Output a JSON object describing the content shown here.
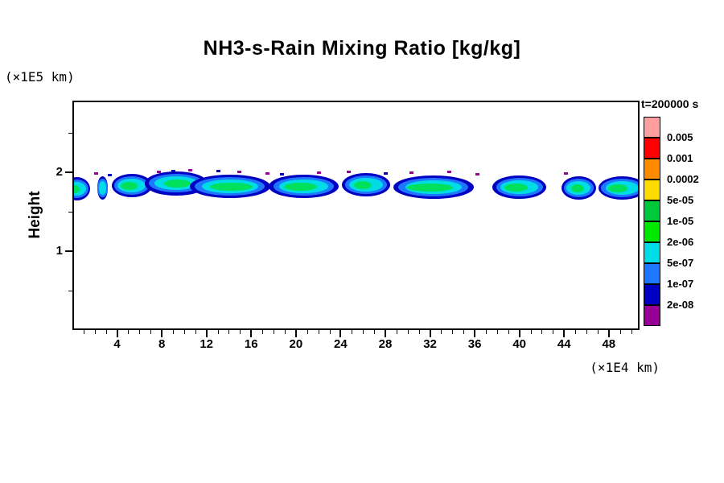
{
  "chart_data": {
    "type": "heatmap",
    "title": "NH3-s-Rain Mixing Ratio [kg/kg]",
    "xlabel": "(×1E4 km)",
    "ylabel": "Height",
    "y_unit": "(×1E5 km)",
    "time_label": "t=200000 s",
    "xlim": [
      0,
      50.75
    ],
    "ylim": [
      0,
      2.91
    ],
    "x_major_ticks": [
      4,
      8,
      12,
      16,
      20,
      24,
      28,
      32,
      36,
      40,
      44,
      48
    ],
    "x_minor_step": 1,
    "y_major_ticks": [
      1,
      2
    ],
    "y_minor_ticks": [
      0.5,
      1.5,
      2.5
    ],
    "levels_desc": [
      "0.005",
      "0.001",
      "0.0002",
      "5e-05",
      "1e-05",
      "2e-06",
      "5e-07",
      "1e-07",
      "2e-08"
    ],
    "palette_desc": [
      "#ff9e9e",
      "#ff0000",
      "#ff8c00",
      "#ffdc00",
      "#00c83c",
      "#00e800",
      "#00dce6",
      "#1e78ff",
      "#0000c3",
      "#960096"
    ],
    "legend_position": "right",
    "grid": false,
    "band": {
      "cy_default": 1.82,
      "layer_colors": {
        "outer": "#0000c3",
        "mid": "#1e78ff",
        "inner": "#00dce6",
        "core": "#00e05a"
      },
      "blobs": [
        {
          "cx": 0.4,
          "w": 2.4,
          "cy": 1.79,
          "core_w": 0.9,
          "core_cx": 0.2
        },
        {
          "cx": 2.7,
          "w": 1.0,
          "cy": 1.8,
          "core_w": 0,
          "core_cx": 0
        },
        {
          "cx": 5.3,
          "w": 3.6,
          "cy": 1.83,
          "core_w": 1.5,
          "core_cx": 5.1
        },
        {
          "cx": 9.3,
          "w": 5.6,
          "cy": 1.86,
          "core_w": 2.4,
          "core_cx": 9.4
        },
        {
          "cx": 14.1,
          "w": 7.2,
          "cy": 1.82,
          "core_w": 3.8,
          "core_cx": 14.2
        },
        {
          "cx": 20.7,
          "w": 6.2,
          "cy": 1.82,
          "core_w": 2.9,
          "core_cx": 20.4
        },
        {
          "cx": 26.3,
          "w": 4.3,
          "cy": 1.84,
          "core_w": 1.6,
          "core_cx": 26.0
        },
        {
          "cx": 32.3,
          "w": 7.2,
          "cy": 1.81,
          "core_w": 4.1,
          "core_cx": 32.0
        },
        {
          "cx": 40.0,
          "w": 4.8,
          "cy": 1.81,
          "core_w": 2.1,
          "core_cx": 39.7
        },
        {
          "cx": 45.3,
          "w": 3.1,
          "cy": 1.8,
          "core_w": 1.1,
          "core_cx": 45.2
        },
        {
          "cx": 49.2,
          "w": 4.3,
          "cy": 1.8,
          "core_w": 1.7,
          "core_cx": 48.8
        }
      ],
      "specks": [
        {
          "x": 2.1,
          "y": 1.99,
          "c": "p"
        },
        {
          "x": 3.3,
          "y": 1.97,
          "c": "n"
        },
        {
          "x": 7.7,
          "y": 2.01,
          "c": "p"
        },
        {
          "x": 9.0,
          "y": 2.02,
          "c": "n"
        },
        {
          "x": 10.5,
          "y": 2.03,
          "c": "p"
        },
        {
          "x": 13.0,
          "y": 2.02,
          "c": "n"
        },
        {
          "x": 14.9,
          "y": 2.01,
          "c": "p"
        },
        {
          "x": 17.4,
          "y": 1.99,
          "c": "p"
        },
        {
          "x": 18.7,
          "y": 1.98,
          "c": "n"
        },
        {
          "x": 22.0,
          "y": 2.0,
          "c": "p"
        },
        {
          "x": 24.7,
          "y": 2.01,
          "c": "p"
        },
        {
          "x": 28.0,
          "y": 1.99,
          "c": "n"
        },
        {
          "x": 30.3,
          "y": 2.0,
          "c": "p"
        },
        {
          "x": 33.7,
          "y": 2.01,
          "c": "p"
        },
        {
          "x": 36.2,
          "y": 1.98,
          "c": "p"
        },
        {
          "x": 44.1,
          "y": 1.99,
          "c": "p"
        }
      ]
    }
  }
}
